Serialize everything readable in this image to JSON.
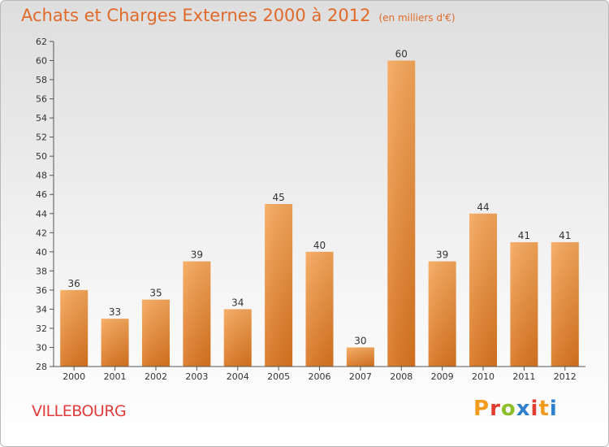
{
  "header": {
    "title": "Achats et Charges Externes 2000 à 2012",
    "subtitle": "(en milliers d'€)"
  },
  "footer": {
    "city": "VILLEBOURG",
    "brand": "Proxiti",
    "brand_colors": [
      "#f29b1e",
      "#e23b2f",
      "#8dbf2b",
      "#2f7fcf",
      "#e23b2f",
      "#f29b1e",
      "#2f7fcf"
    ]
  },
  "colors": {
    "accent": "#e06a2a",
    "bar_light": "#f6a75a",
    "bar_dark": "#d9741f",
    "city": "#e03c3c"
  },
  "chart_data": {
    "type": "bar",
    "title": "Achats et Charges Externes 2000 à 2012",
    "subtitle": "(en milliers d'€)",
    "categories": [
      "2000",
      "2001",
      "2002",
      "2003",
      "2004",
      "2005",
      "2006",
      "2007",
      "2008",
      "2009",
      "2010",
      "2011",
      "2012"
    ],
    "values": [
      36,
      33,
      35,
      39,
      34,
      45,
      40,
      30,
      60,
      39,
      44,
      41,
      41
    ],
    "ylim": [
      28,
      62
    ],
    "yticks": [
      28,
      30,
      32,
      34,
      36,
      38,
      40,
      42,
      44,
      46,
      48,
      50,
      52,
      54,
      56,
      58,
      60,
      62
    ],
    "grid": false,
    "data_labels": true
  }
}
